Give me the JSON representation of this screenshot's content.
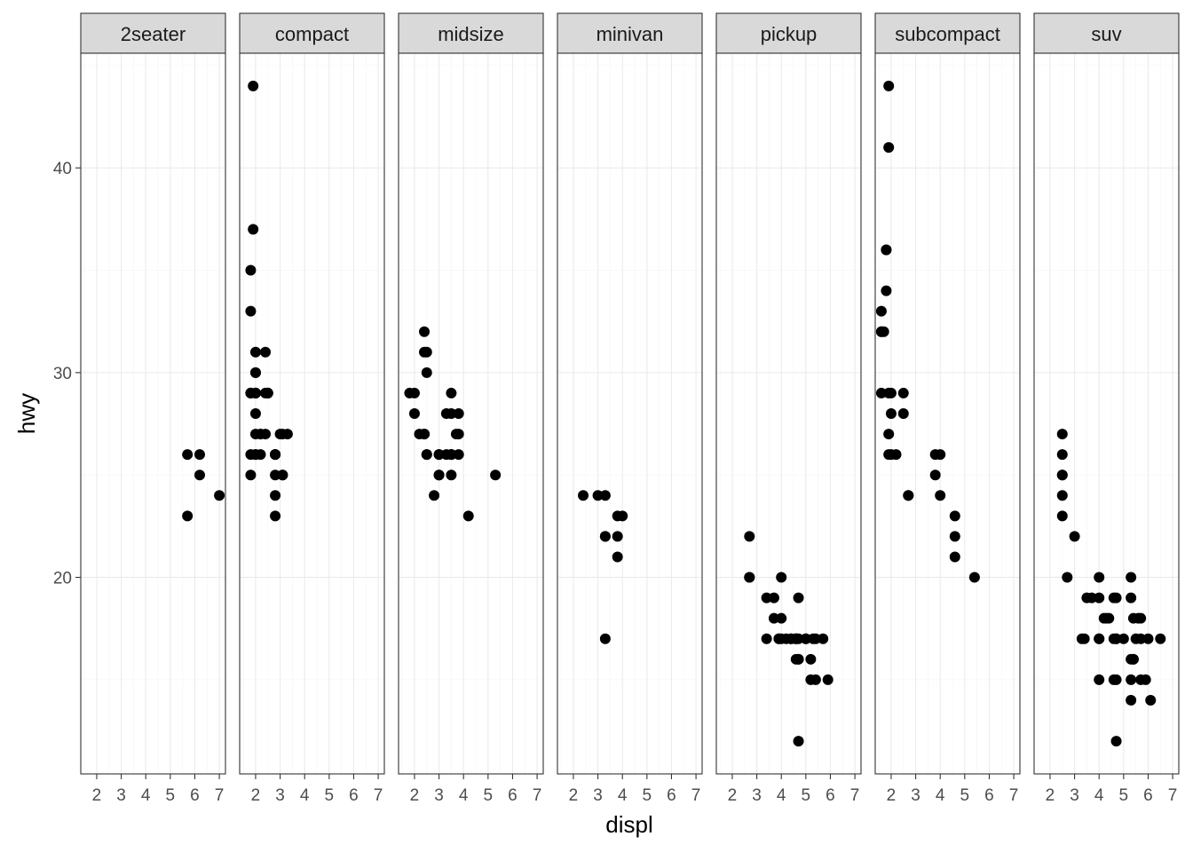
{
  "chart_data": {
    "type": "scatter",
    "facet_by": "class",
    "xlabel": "displ",
    "ylabel": "hwy",
    "xlim": [
      1.35,
      7.25
    ],
    "ylim": [
      10.4,
      45.6
    ],
    "x_ticks": [
      2,
      3,
      4,
      5,
      6,
      7
    ],
    "y_ticks": [
      20,
      30,
      40
    ],
    "grid": true,
    "panels": [
      {
        "name": "2seater",
        "points": [
          [
            5.7,
            26
          ],
          [
            5.7,
            23
          ],
          [
            6.2,
            26
          ],
          [
            6.2,
            25
          ],
          [
            7.0,
            24
          ]
        ]
      },
      {
        "name": "compact",
        "points": [
          [
            1.8,
            29
          ],
          [
            1.8,
            29
          ],
          [
            2.0,
            31
          ],
          [
            2.0,
            30
          ],
          [
            2.8,
            26
          ],
          [
            2.8,
            26
          ],
          [
            3.1,
            27
          ],
          [
            1.8,
            26
          ],
          [
            1.8,
            25
          ],
          [
            2.0,
            28
          ],
          [
            2.0,
            29
          ],
          [
            2.8,
            26
          ],
          [
            2.8,
            25
          ],
          [
            3.1,
            25
          ],
          [
            3.1,
            25
          ],
          [
            2.2,
            26
          ],
          [
            2.2,
            27
          ],
          [
            2.4,
            29
          ],
          [
            2.4,
            31
          ],
          [
            3.0,
            27
          ],
          [
            3.3,
            27
          ],
          [
            1.8,
            29
          ],
          [
            2.0,
            29
          ],
          [
            2.0,
            29
          ],
          [
            2.0,
            30
          ],
          [
            1.9,
            44
          ],
          [
            1.9,
            37
          ],
          [
            1.8,
            35
          ],
          [
            1.8,
            33
          ],
          [
            2.0,
            29
          ],
          [
            2.0,
            26
          ],
          [
            2.5,
            29
          ],
          [
            2.5,
            29
          ],
          [
            2.8,
            23
          ],
          [
            2.8,
            24
          ],
          [
            2.0,
            27
          ],
          [
            2.0,
            26
          ],
          [
            2.2,
            27
          ],
          [
            2.4,
            27
          ],
          [
            2.5,
            29
          ]
        ]
      },
      {
        "name": "midsize",
        "points": [
          [
            2.4,
            32
          ],
          [
            2.4,
            31
          ],
          [
            2.5,
            30
          ],
          [
            2.5,
            31
          ],
          [
            3.3,
            28
          ],
          [
            3.5,
            29
          ],
          [
            3.5,
            26
          ],
          [
            3.5,
            26
          ],
          [
            3.5,
            28
          ],
          [
            3.7,
            27
          ],
          [
            2.4,
            27
          ],
          [
            2.4,
            27
          ],
          [
            3.0,
            25
          ],
          [
            3.0,
            26
          ],
          [
            2.5,
            26
          ],
          [
            2.5,
            26
          ],
          [
            2.8,
            24
          ],
          [
            3.0,
            25
          ],
          [
            3.3,
            26
          ],
          [
            3.5,
            26
          ],
          [
            3.5,
            25
          ],
          [
            3.8,
            26
          ],
          [
            3.8,
            28
          ],
          [
            3.8,
            27
          ],
          [
            4.2,
            23
          ],
          [
            5.3,
            25
          ],
          [
            1.8,
            29
          ],
          [
            2.0,
            29
          ],
          [
            2.0,
            28
          ],
          [
            2.2,
            27
          ],
          [
            2.4,
            27
          ],
          [
            3.0,
            26
          ]
        ]
      },
      {
        "name": "minivan",
        "points": [
          [
            2.4,
            24
          ],
          [
            3.0,
            24
          ],
          [
            3.3,
            22
          ],
          [
            3.3,
            24
          ],
          [
            3.3,
            22
          ],
          [
            3.3,
            17
          ],
          [
            3.8,
            22
          ],
          [
            3.8,
            21
          ],
          [
            3.8,
            23
          ],
          [
            4.0,
            23
          ]
        ]
      },
      {
        "name": "pickup",
        "points": [
          [
            2.7,
            20
          ],
          [
            2.7,
            20
          ],
          [
            2.7,
            22
          ],
          [
            3.4,
            19
          ],
          [
            3.4,
            17
          ],
          [
            3.7,
            19
          ],
          [
            3.7,
            18
          ],
          [
            3.9,
            17
          ],
          [
            4.0,
            20
          ],
          [
            4.0,
            18
          ],
          [
            4.2,
            17
          ],
          [
            4.6,
            17
          ],
          [
            4.7,
            17
          ],
          [
            4.7,
            12
          ],
          [
            4.7,
            16
          ],
          [
            4.7,
            19
          ],
          [
            4.7,
            16
          ],
          [
            5.2,
            16
          ],
          [
            5.2,
            15
          ],
          [
            5.3,
            17
          ],
          [
            5.4,
            17
          ],
          [
            5.4,
            15
          ],
          [
            5.7,
            17
          ],
          [
            5.9,
            15
          ],
          [
            4.4,
            17
          ],
          [
            4.6,
            16
          ],
          [
            4.6,
            17
          ],
          [
            4.6,
            17
          ],
          [
            5.0,
            17
          ],
          [
            5.0,
            17
          ],
          [
            3.9,
            17
          ],
          [
            4.0,
            17
          ],
          [
            4.4,
            17
          ]
        ]
      },
      {
        "name": "subcompact",
        "points": [
          [
            1.6,
            33
          ],
          [
            1.6,
            32
          ],
          [
            1.6,
            32
          ],
          [
            1.6,
            29
          ],
          [
            1.7,
            32
          ],
          [
            1.8,
            34
          ],
          [
            1.8,
            36
          ],
          [
            1.8,
            36
          ],
          [
            1.9,
            29
          ],
          [
            1.9,
            26
          ],
          [
            1.9,
            27
          ],
          [
            1.9,
            44
          ],
          [
            1.9,
            41
          ],
          [
            2.0,
            28
          ],
          [
            2.0,
            26
          ],
          [
            2.0,
            29
          ],
          [
            2.2,
            26
          ],
          [
            2.5,
            28
          ],
          [
            2.5,
            29
          ],
          [
            2.7,
            24
          ],
          [
            2.7,
            24
          ],
          [
            3.8,
            26
          ],
          [
            3.8,
            25
          ],
          [
            4.0,
            26
          ],
          [
            4.0,
            24
          ],
          [
            4.6,
            23
          ],
          [
            4.6,
            22
          ],
          [
            4.6,
            21
          ],
          [
            5.4,
            20
          ]
        ]
      },
      {
        "name": "suv",
        "points": [
          [
            2.5,
            27
          ],
          [
            2.5,
            26
          ],
          [
            2.5,
            25
          ],
          [
            2.5,
            25
          ],
          [
            2.5,
            24
          ],
          [
            2.5,
            23
          ],
          [
            2.7,
            20
          ],
          [
            3.0,
            22
          ],
          [
            3.3,
            17
          ],
          [
            3.4,
            17
          ],
          [
            3.5,
            19
          ],
          [
            3.7,
            19
          ],
          [
            4.0,
            17
          ],
          [
            4.0,
            20
          ],
          [
            4.0,
            15
          ],
          [
            4.0,
            19
          ],
          [
            4.2,
            18
          ],
          [
            4.3,
            18
          ],
          [
            4.6,
            15
          ],
          [
            4.6,
            19
          ],
          [
            4.7,
            17
          ],
          [
            4.7,
            12
          ],
          [
            4.7,
            19
          ],
          [
            4.7,
            15
          ],
          [
            5.0,
            17
          ],
          [
            5.3,
            20
          ],
          [
            5.3,
            19
          ],
          [
            5.3,
            16
          ],
          [
            5.3,
            14
          ],
          [
            5.3,
            15
          ],
          [
            5.4,
            16
          ],
          [
            5.4,
            18
          ],
          [
            5.5,
            17
          ],
          [
            5.6,
            18
          ],
          [
            5.7,
            17
          ],
          [
            5.7,
            18
          ],
          [
            5.9,
            15
          ],
          [
            6.0,
            17
          ],
          [
            6.1,
            14
          ],
          [
            6.5,
            17
          ],
          [
            4.0,
            17
          ],
          [
            4.4,
            18
          ],
          [
            4.6,
            17
          ],
          [
            4.7,
            17
          ],
          [
            5.4,
            16
          ],
          [
            5.7,
            15
          ]
        ]
      }
    ]
  }
}
